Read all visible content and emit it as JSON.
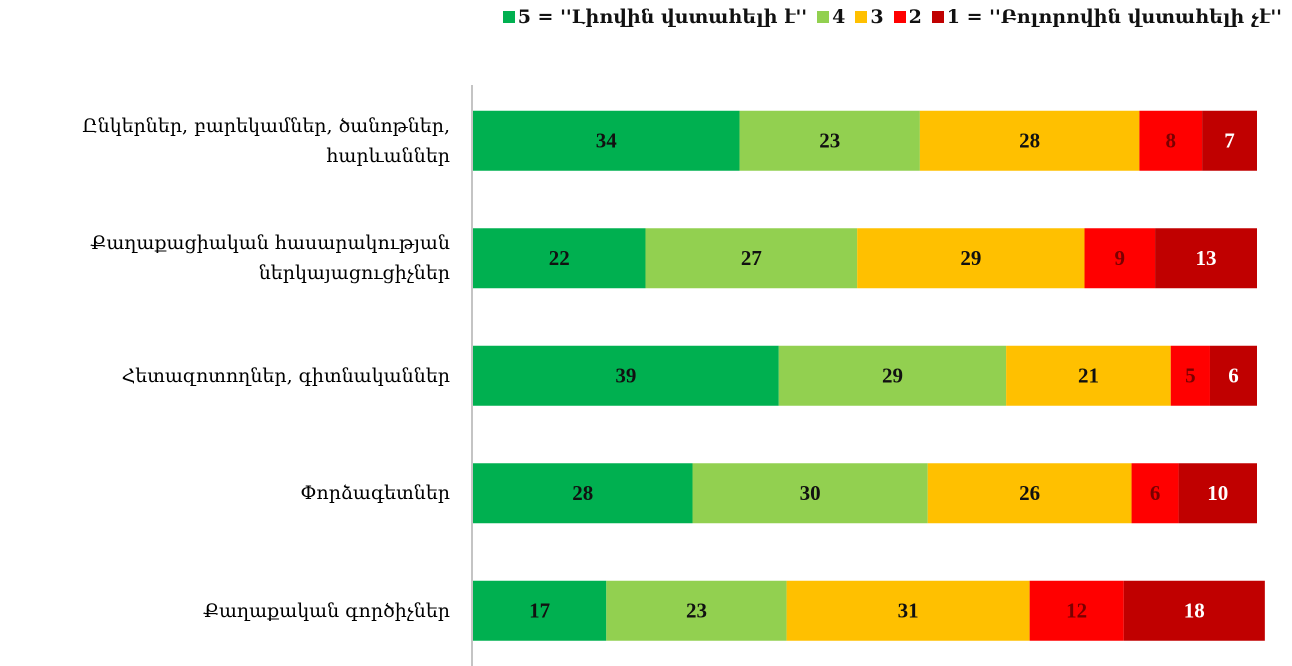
{
  "chart_data": {
    "type": "stacked-bar-horizontal",
    "categories": [
      "Ընկերներ, բարեկամներ, ծանոթներ,\nհարևաններ",
      "Քաղաքացիական հասարակության\nներկայացուցիչներ",
      "Հետազոտողներ, գիտնականներ",
      "Փորձագետներ",
      "Քաղաքական գործիչներ"
    ],
    "series": [
      {
        "name": "5 = ''Լիովին վստահելի է''",
        "color": "#00b050",
        "label_color": "#111111",
        "values": [
          34,
          22,
          39,
          28,
          17
        ]
      },
      {
        "name": "4",
        "color": "#92d050",
        "label_color": "#111111",
        "values": [
          23,
          27,
          29,
          30,
          23
        ]
      },
      {
        "name": "3",
        "color": "#ffc000",
        "label_color": "#111111",
        "values": [
          28,
          29,
          21,
          26,
          31
        ]
      },
      {
        "name": "2",
        "color": "#ff0000",
        "label_color": "#7a0000",
        "values": [
          8,
          9,
          5,
          6,
          12
        ]
      },
      {
        "name": "1 = ''Բոլորովին վստահելի չէ''",
        "color": "#c00000",
        "label_color": "#ffffff",
        "values": [
          7,
          13,
          6,
          10,
          18
        ]
      }
    ],
    "xlim": [
      0,
      100
    ],
    "legend": "top-right"
  }
}
